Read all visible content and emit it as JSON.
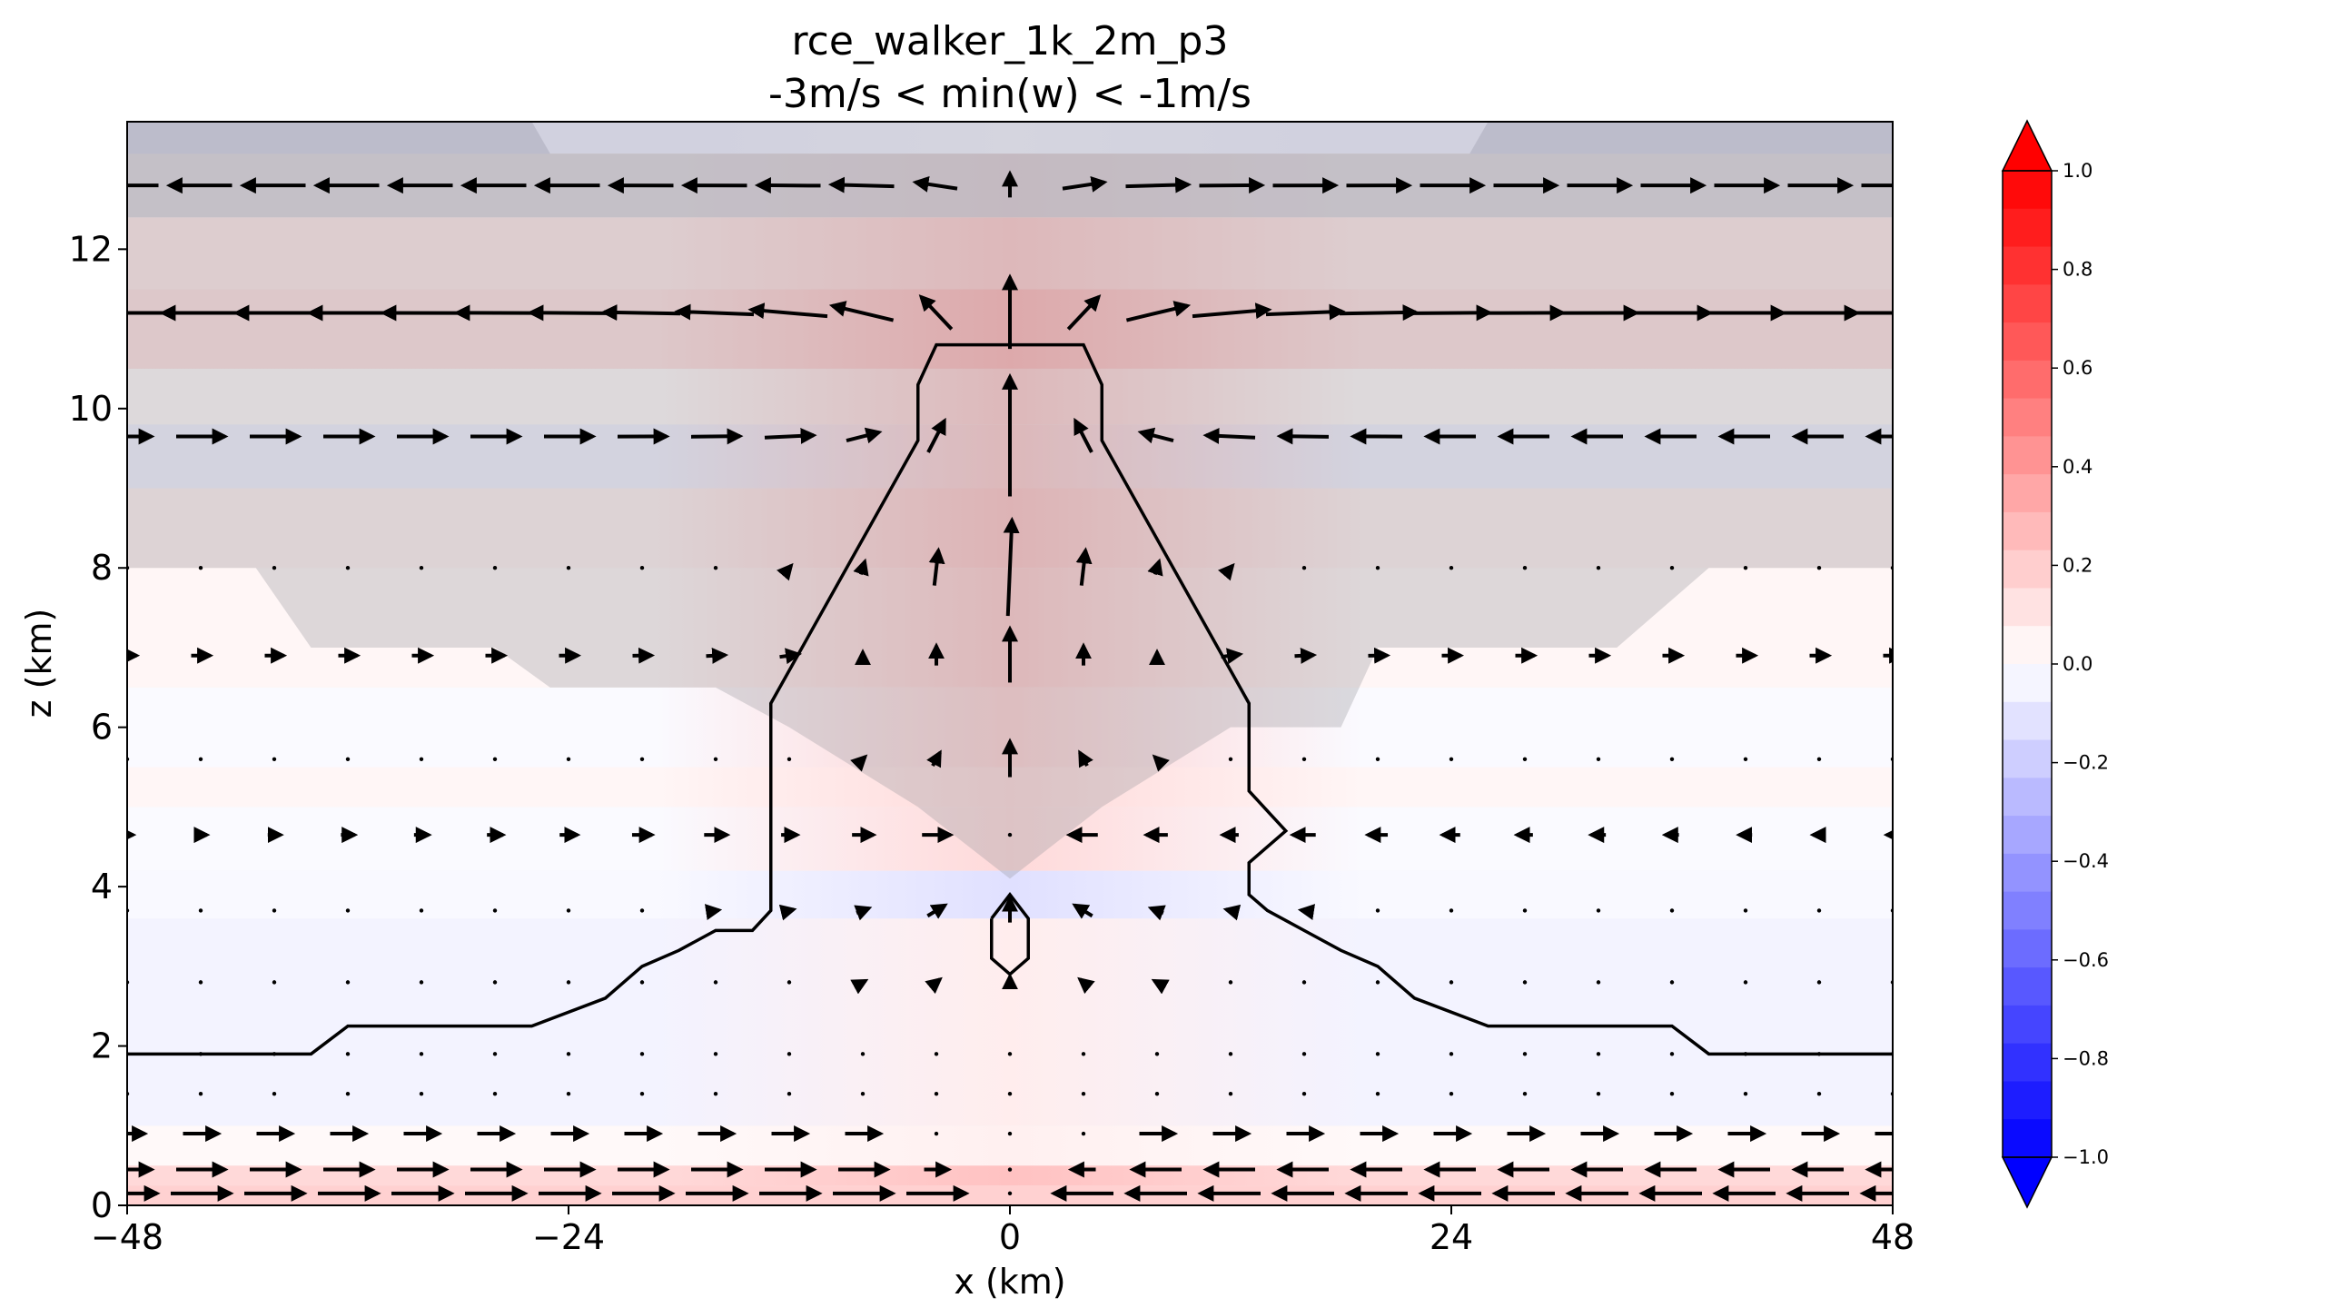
{
  "chart_data": {
    "type": "contour_quiver",
    "title_line1": "rce_walker_1k_2m_p3",
    "title_line2": "-3m/s < min(w) < -1m/s",
    "xlabel": "x (km)",
    "ylabel": "z (km)",
    "xlim": [
      -48,
      48
    ],
    "ylim": [
      0,
      13.6
    ],
    "xticks": [
      -48,
      -24,
      0,
      24,
      48
    ],
    "xtick_labels": [
      "−48",
      "−24",
      "0",
      "24",
      "48"
    ],
    "yticks": [
      0,
      2,
      4,
      6,
      8,
      10,
      12
    ],
    "ytick_labels": [
      "0",
      "2",
      "4",
      "6",
      "8",
      "10",
      "12"
    ],
    "colorbar": {
      "vmin": -1.0,
      "vmax": 1.0,
      "levels": 26,
      "extend": "both",
      "cmap": "bwr",
      "ticks": [
        1.0,
        0.8,
        0.6,
        0.4,
        0.2,
        0.0,
        -0.2,
        -0.4,
        -0.6,
        -0.8,
        -1.0
      ],
      "tick_labels": [
        "1.0",
        "0.8",
        "0.6",
        "0.4",
        "0.2",
        "0.0",
        "−0.2",
        "−0.4",
        "−0.6",
        "−0.8",
        "−1.0"
      ]
    },
    "fill_bands": [
      {
        "z": [
          0.0,
          0.25
        ],
        "value_center": 0.3,
        "value_edge": 0.3
      },
      {
        "z": [
          0.25,
          0.5
        ],
        "value_center": 0.4,
        "value_edge": 0.25
      },
      {
        "z": [
          0.5,
          1.0
        ],
        "value_center": 0.1,
        "value_edge": 0.04
      },
      {
        "z": [
          1.0,
          3.6
        ],
        "value_center": 0.12,
        "value_edge": -0.08
      },
      {
        "z": [
          3.6,
          4.2
        ],
        "value_center": -0.2,
        "value_edge": -0.04
      },
      {
        "z": [
          4.2,
          5.0
        ],
        "value_center": 0.25,
        "value_edge": -0.03
      },
      {
        "z": [
          5.0,
          5.5
        ],
        "value_center": 0.25,
        "value_edge": 0.06
      },
      {
        "z": [
          5.5,
          6.5
        ],
        "value_center": 0.3,
        "value_edge": -0.03
      },
      {
        "z": [
          6.5,
          8.0
        ],
        "value_center": 0.35,
        "value_edge": 0.06
      },
      {
        "z": [
          8.0,
          9.0
        ],
        "value_center": 0.4,
        "value_edge": 0.1
      },
      {
        "z": [
          9.0,
          9.8
        ],
        "value_center": 0.35,
        "value_edge": -0.1
      },
      {
        "z": [
          9.8,
          10.5
        ],
        "value_center": 0.35,
        "value_edge": 0.03
      },
      {
        "z": [
          10.5,
          11.5
        ],
        "value_center": 0.5,
        "value_edge": 0.2
      },
      {
        "z": [
          11.5,
          12.4
        ],
        "value_center": 0.35,
        "value_edge": 0.15
      },
      {
        "z": [
          12.4,
          13.2
        ],
        "value_center": 0.15,
        "value_edge": 0.05
      },
      {
        "z": [
          13.2,
          13.6
        ],
        "value_center": -0.08,
        "value_edge": -0.12
      }
    ],
    "contour_line": {
      "x": [
        -48,
        -38,
        -36,
        -26,
        -22,
        -20,
        -18,
        -16,
        -14,
        -13,
        -13,
        -5,
        -5,
        -4,
        -2,
        2,
        4,
        5,
        5,
        13,
        13,
        15,
        13,
        13,
        14,
        16,
        18,
        20,
        22,
        26,
        36,
        38,
        48
      ],
      "y": [
        1.9,
        1.9,
        2.25,
        2.25,
        2.6,
        3.0,
        3.2,
        3.45,
        3.45,
        3.7,
        6.3,
        9.6,
        10.3,
        10.8,
        10.8,
        10.8,
        10.8,
        10.3,
        9.6,
        6.3,
        5.2,
        4.7,
        4.3,
        3.9,
        3.7,
        3.45,
        3.2,
        3.0,
        2.6,
        2.25,
        2.25,
        1.9,
        1.9
      ]
    },
    "contour_loop": {
      "x": [
        -1,
        0,
        1,
        1,
        0,
        -1,
        -1
      ],
      "y": [
        3.6,
        3.9,
        3.6,
        3.1,
        2.9,
        3.1,
        3.6
      ]
    },
    "quiver_levels_z": [
      0.15,
      0.45,
      0.9,
      1.4,
      1.9,
      2.8,
      3.7,
      4.65,
      5.6,
      6.9,
      8.0,
      9.65,
      11.2,
      12.8
    ],
    "quiver_x": [
      -48,
      -44,
      -40,
      -36,
      -32,
      -28,
      -24,
      -20,
      -16,
      -12,
      -8,
      -4,
      0,
      4,
      8,
      12,
      16,
      20,
      24,
      28,
      32,
      36,
      40,
      44,
      48
    ]
  }
}
